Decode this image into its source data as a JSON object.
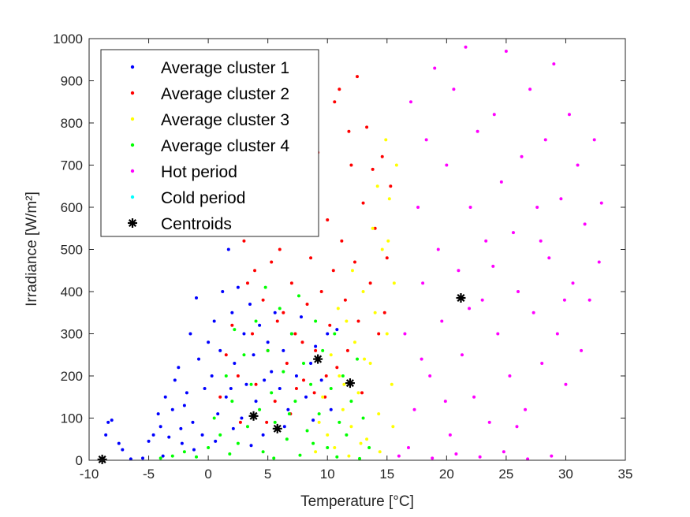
{
  "chart_data": {
    "type": "scatter",
    "xlabel": "Temperature [°C]",
    "ylabel": "Irradiance [W/m²]",
    "xlim": [
      -10,
      35
    ],
    "ylim": [
      0,
      1000
    ],
    "xticks": [
      "-10",
      "-5",
      "0",
      "5",
      "10",
      "15",
      "20",
      "25",
      "30",
      "35"
    ],
    "yticks": [
      "0",
      "100",
      "200",
      "300",
      "400",
      "500",
      "600",
      "700",
      "800",
      "900",
      "1000"
    ],
    "grid": false,
    "legend_position": "top-left",
    "series": [
      {
        "name": "Average cluster 1",
        "color": "#0000ff",
        "points": [
          [
            -8.6,
            60
          ],
          [
            -8.4,
            90
          ],
          [
            -8.1,
            95
          ],
          [
            -7.5,
            40
          ],
          [
            -7.2,
            25
          ],
          [
            -6.5,
            3
          ],
          [
            -5.5,
            5
          ],
          [
            -5,
            45
          ],
          [
            -4.6,
            60
          ],
          [
            -4.2,
            110
          ],
          [
            -4,
            80
          ],
          [
            -3.6,
            150
          ],
          [
            -3.3,
            55
          ],
          [
            -3,
            120
          ],
          [
            -2.8,
            190
          ],
          [
            -2.5,
            220
          ],
          [
            -2.2,
            40
          ],
          [
            -2,
            130
          ],
          [
            -1.8,
            160
          ],
          [
            -1.5,
            300
          ],
          [
            -1.3,
            90
          ],
          [
            -1,
            385
          ],
          [
            -0.8,
            240
          ],
          [
            -0.5,
            60
          ],
          [
            -0.3,
            170
          ],
          [
            0,
            280
          ],
          [
            0.3,
            200
          ],
          [
            0.5,
            330
          ],
          [
            0.8,
            110
          ],
          [
            1,
            260
          ],
          [
            1.2,
            400
          ],
          [
            1.5,
            150
          ],
          [
            1.7,
            500
          ],
          [
            2,
            350
          ],
          [
            2.2,
            230
          ],
          [
            2.5,
            410
          ],
          [
            2.8,
            100
          ],
          [
            3,
            300
          ],
          [
            3.2,
            180
          ],
          [
            3.5,
            370
          ],
          [
            3.8,
            250
          ],
          [
            4,
            140
          ],
          [
            4.3,
            320
          ],
          [
            4.6,
            60
          ],
          [
            5,
            280
          ],
          [
            5.3,
            210
          ],
          [
            5.6,
            350
          ],
          [
            6,
            170
          ],
          [
            6.3,
            260
          ],
          [
            6.7,
            120
          ],
          [
            7,
            300
          ],
          [
            7.4,
            200
          ],
          [
            7.8,
            340
          ],
          [
            8.2,
            150
          ],
          [
            8.6,
            230
          ],
          [
            9,
            270
          ],
          [
            9.5,
            190
          ],
          [
            10,
            300
          ],
          [
            10.3,
            120
          ],
          [
            10.8,
            310
          ],
          [
            -3.8,
            10
          ],
          [
            -1.2,
            25
          ],
          [
            0.6,
            45
          ],
          [
            2.1,
            75
          ],
          [
            3.6,
            35
          ],
          [
            -2.3,
            75
          ],
          [
            1.9,
            170
          ],
          [
            4.7,
            190
          ],
          [
            6.4,
            80
          ],
          [
            8.8,
            95
          ]
        ]
      },
      {
        "name": "Average cluster 2",
        "color": "#ff0000",
        "points": [
          [
            1,
            150
          ],
          [
            1.5,
            250
          ],
          [
            2,
            320
          ],
          [
            2.5,
            200
          ],
          [
            3,
            520
          ],
          [
            3.3,
            420
          ],
          [
            3.7,
            300
          ],
          [
            4,
            180
          ],
          [
            4.3,
            580
          ],
          [
            4.6,
            380
          ],
          [
            5,
            260
          ],
          [
            5.3,
            470
          ],
          [
            5.6,
            140
          ],
          [
            6,
            500
          ],
          [
            6.3,
            350
          ],
          [
            6.6,
            230
          ],
          [
            7,
            420
          ],
          [
            7.3,
            300
          ],
          [
            7.6,
            600
          ],
          [
            8,
            190
          ],
          [
            8.3,
            370
          ],
          [
            8.6,
            480
          ],
          [
            9,
            260
          ],
          [
            9.2,
            730
          ],
          [
            9.5,
            400
          ],
          [
            9.8,
            150
          ],
          [
            10,
            570
          ],
          [
            10.2,
            320
          ],
          [
            10.5,
            450
          ],
          [
            10.8,
            220
          ],
          [
            11,
            880
          ],
          [
            11.2,
            520
          ],
          [
            11.5,
            380
          ],
          [
            11.7,
            260
          ],
          [
            12,
            700
          ],
          [
            12.3,
            470
          ],
          [
            12.6,
            330
          ],
          [
            13,
            610
          ],
          [
            13.3,
            790
          ],
          [
            13.6,
            420
          ],
          [
            14,
            550
          ],
          [
            14.3,
            300
          ],
          [
            14.6,
            720
          ],
          [
            15,
            480
          ],
          [
            15.3,
            650
          ],
          [
            10.6,
            850
          ],
          [
            11.8,
            780
          ],
          [
            12.5,
            910
          ],
          [
            13.8,
            690
          ],
          [
            5.8,
            330
          ],
          [
            6.9,
            110
          ],
          [
            7.9,
            280
          ],
          [
            8.9,
            160
          ],
          [
            4.9,
            90
          ],
          [
            9.9,
            200
          ],
          [
            12.9,
            160
          ],
          [
            14.8,
            350
          ],
          [
            2.7,
            90
          ],
          [
            3.9,
            450
          ],
          [
            7.4,
            170
          ]
        ]
      },
      {
        "name": "Average cluster 3",
        "color": "#ffff00",
        "points": [
          [
            9,
            20
          ],
          [
            9.3,
            90
          ],
          [
            9.6,
            150
          ],
          [
            10,
            60
          ],
          [
            10.3,
            250
          ],
          [
            10.6,
            30
          ],
          [
            11,
            200
          ],
          [
            11.3,
            120
          ],
          [
            11.6,
            330
          ],
          [
            12,
            80
          ],
          [
            12.3,
            280
          ],
          [
            12.6,
            160
          ],
          [
            13,
            400
          ],
          [
            13.3,
            50
          ],
          [
            13.6,
            230
          ],
          [
            14,
            350
          ],
          [
            14.3,
            110
          ],
          [
            14.6,
            500
          ],
          [
            15,
            300
          ],
          [
            15.2,
            620
          ],
          [
            15.4,
            180
          ],
          [
            15.6,
            420
          ],
          [
            15.8,
            700
          ],
          [
            14.9,
            760
          ],
          [
            15.5,
            80
          ],
          [
            12.1,
            450
          ],
          [
            13.8,
            550
          ],
          [
            14.4,
            20
          ],
          [
            11.8,
            10
          ],
          [
            10.9,
            360
          ],
          [
            13.1,
            240
          ],
          [
            14.2,
            650
          ],
          [
            15.1,
            520
          ],
          [
            12.8,
            40
          ],
          [
            11.4,
            180
          ]
        ]
      },
      {
        "name": "Average cluster 4",
        "color": "#00ff00",
        "points": [
          [
            -4,
            5
          ],
          [
            -3,
            10
          ],
          [
            -2,
            20
          ],
          [
            -1,
            8
          ],
          [
            0,
            30
          ],
          [
            0.5,
            100
          ],
          [
            1,
            60
          ],
          [
            1.5,
            200
          ],
          [
            2,
            140
          ],
          [
            2.5,
            40
          ],
          [
            3,
            250
          ],
          [
            3.3,
            80
          ],
          [
            3.6,
            180
          ],
          [
            4,
            330
          ],
          [
            4.3,
            120
          ],
          [
            4.6,
            20
          ],
          [
            5,
            260
          ],
          [
            5.3,
            160
          ],
          [
            5.6,
            90
          ],
          [
            6,
            360
          ],
          [
            6.3,
            210
          ],
          [
            6.6,
            50
          ],
          [
            7,
            300
          ],
          [
            7.3,
            140
          ],
          [
            7.6,
            390
          ],
          [
            8,
            230
          ],
          [
            8.3,
            70
          ],
          [
            8.6,
            180
          ],
          [
            9,
            330
          ],
          [
            9.3,
            110
          ],
          [
            9.6,
            260
          ],
          [
            10,
            30
          ],
          [
            10.3,
            170
          ],
          [
            10.6,
            300
          ],
          [
            11,
            90
          ],
          [
            11.3,
            200
          ],
          [
            11.6,
            60
          ],
          [
            12,
            140
          ],
          [
            12.5,
            240
          ],
          [
            13,
            100
          ],
          [
            13.5,
            30
          ],
          [
            2.2,
            310
          ],
          [
            4.8,
            410
          ],
          [
            6.8,
            110
          ],
          [
            8.8,
            40
          ],
          [
            1.8,
            15
          ],
          [
            5.5,
            5
          ],
          [
            7.7,
            12
          ],
          [
            10.8,
            8
          ],
          [
            12.7,
            4
          ]
        ]
      },
      {
        "name": "Hot period",
        "color": "#ff00ff",
        "points": [
          [
            16,
            10
          ],
          [
            16.5,
            300
          ],
          [
            17,
            850
          ],
          [
            17.3,
            120
          ],
          [
            17.6,
            600
          ],
          [
            18,
            420
          ],
          [
            18.3,
            760
          ],
          [
            18.6,
            200
          ],
          [
            19,
            930
          ],
          [
            19.3,
            500
          ],
          [
            19.6,
            330
          ],
          [
            20,
            700
          ],
          [
            20.3,
            60
          ],
          [
            20.6,
            880
          ],
          [
            21,
            450
          ],
          [
            21.3,
            250
          ],
          [
            21.6,
            980
          ],
          [
            22,
            600
          ],
          [
            22.3,
            150
          ],
          [
            22.6,
            780
          ],
          [
            23,
            380
          ],
          [
            23.3,
            520
          ],
          [
            23.6,
            90
          ],
          [
            24,
            820
          ],
          [
            24.3,
            300
          ],
          [
            24.6,
            660
          ],
          [
            25,
            970
          ],
          [
            25.3,
            200
          ],
          [
            25.6,
            540
          ],
          [
            26,
            400
          ],
          [
            26.3,
            720
          ],
          [
            26.6,
            120
          ],
          [
            27,
            880
          ],
          [
            27.3,
            350
          ],
          [
            27.6,
            600
          ],
          [
            28,
            230
          ],
          [
            28.3,
            760
          ],
          [
            28.6,
            480
          ],
          [
            29,
            940
          ],
          [
            29.3,
            300
          ],
          [
            29.6,
            620
          ],
          [
            30,
            180
          ],
          [
            30.3,
            820
          ],
          [
            30.6,
            420
          ],
          [
            31,
            700
          ],
          [
            31.3,
            260
          ],
          [
            31.6,
            560
          ],
          [
            32,
            380
          ],
          [
            32.4,
            760
          ],
          [
            32.8,
            470
          ],
          [
            33,
            610
          ],
          [
            16.8,
            30
          ],
          [
            18.8,
            5
          ],
          [
            20.8,
            15
          ],
          [
            22.8,
            8
          ],
          [
            24.8,
            20
          ],
          [
            26.8,
            3
          ],
          [
            28.8,
            10
          ],
          [
            17.9,
            240
          ],
          [
            19.9,
            140
          ],
          [
            21.9,
            360
          ],
          [
            23.9,
            460
          ],
          [
            25.9,
            80
          ],
          [
            27.9,
            520
          ],
          [
            29.9,
            380
          ]
        ]
      },
      {
        "name": "Cold period",
        "color": "#00ffff",
        "points": []
      },
      {
        "name": "Centroids",
        "color": "#000000",
        "points": [
          [
            -8.9,
            2
          ],
          [
            3.8,
            105
          ],
          [
            5.8,
            75
          ],
          [
            9.2,
            240
          ],
          [
            11.9,
            183
          ],
          [
            21.2,
            385
          ]
        ]
      }
    ]
  }
}
